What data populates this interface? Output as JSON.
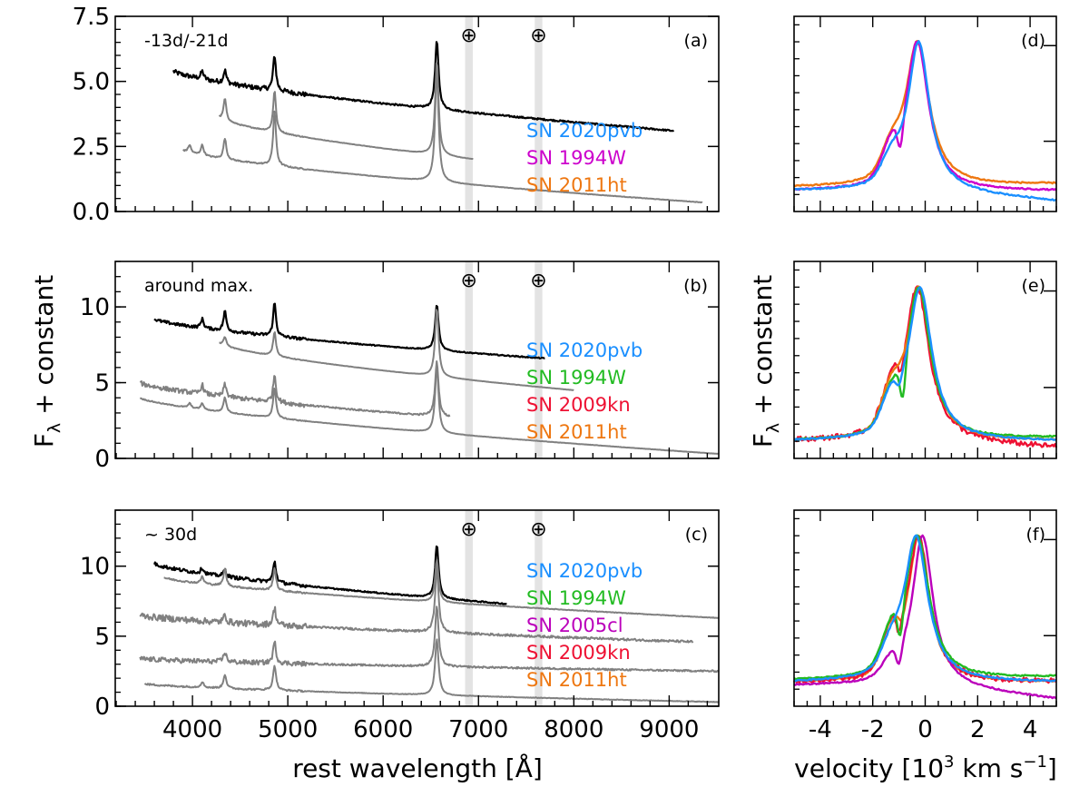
{
  "chart_data": {
    "type": "line",
    "title": "",
    "ylabel": "Fλ + constant",
    "ylabel_main": "F",
    "ylabel_sub": "λ",
    "ylabel_rest": " + constant",
    "left_xlabel": "rest wavelength [Å]",
    "right_xlabel_pre": "velocity [10",
    "right_xlabel_sup1": "3",
    "right_xlabel_mid": " km s",
    "right_xlabel_sup2": "−1",
    "right_xlabel_post": "]",
    "left_xlim": [
      3190,
      9520
    ],
    "right_xlim": [
      -5,
      5
    ],
    "left_xticks": [
      4000,
      5000,
      6000,
      7000,
      8000,
      9000
    ],
    "left_xtick_labels": [
      "4000",
      "5000",
      "6000",
      "7000",
      "8000",
      "9000"
    ],
    "right_xticks": [
      -4,
      -2,
      0,
      2,
      4
    ],
    "right_xtick_labels": [
      "-4",
      "-2",
      "0",
      "2",
      "4"
    ],
    "telluric_bands": [
      [
        6860,
        6940
      ],
      [
        7590,
        7670
      ]
    ],
    "telluric_symbol": "⊕",
    "colors": {
      "SN 2020pvb": "#1a8fff",
      "SN 1994W": "#cc00cc",
      "SN 1994W (b,c)": "#22bb22",
      "SN 2005cl": "#bb00bb",
      "SN 2009kn": "#ee1133",
      "SN 2011ht": "#ee7711",
      "target_spectrum": "#000000",
      "comparison_spectrum": "#808080",
      "telluric_band": "#e3e3e3"
    },
    "panels": [
      {
        "id": "a",
        "tag": "(a)",
        "epoch": "-13d/-21d",
        "ylim": [
          0,
          7.5
        ],
        "yticks": [
          0,
          2.5,
          5.0,
          7.5
        ],
        "ytick_labels": [
          "0.0",
          "2.5",
          "5.0",
          "7.5"
        ],
        "legend": [
          {
            "label": "SN 2020pvb",
            "color": "#1a8fff"
          },
          {
            "label": "SN 1994W",
            "color": "#cc00cc"
          },
          {
            "label": "SN 2011ht",
            "color": "#ee7711"
          }
        ],
        "spectra": [
          {
            "name": "SN 2020pvb",
            "color": "#000000",
            "start": 3800,
            "end": 9050,
            "offset": 5.4,
            "slope_end": 3.1,
            "peaks": [
              [
                4102,
                0.3
              ],
              [
                4340,
                0.5
              ],
              [
                4861,
                1.35
              ],
              [
                6563,
                2.6
              ]
            ],
            "noise": 0.18
          },
          {
            "name": "SN 1994W",
            "color": "#808080",
            "start": 4280,
            "end": 6950,
            "offset": 3.6,
            "slope_end": 2.0,
            "peaks": [
              [
                4340,
                0.85
              ],
              [
                4861,
                1.6
              ],
              [
                6563,
                3.6
              ]
            ],
            "noise": 0.04
          },
          {
            "name": "SN 2011ht",
            "color": "#808080",
            "start": 3900,
            "end": 9350,
            "offset": 2.35,
            "slope_end": 0.35,
            "peaks": [
              [
                3970,
                0.3
              ],
              [
                4102,
                0.4
              ],
              [
                4340,
                0.8
              ],
              [
                4861,
                2.1
              ],
              [
                6563,
                4.3
              ]
            ],
            "noise": 0.05
          }
        ]
      },
      {
        "id": "b",
        "tag": "(b)",
        "epoch": "around max.",
        "ylim": [
          0,
          13
        ],
        "yticks": [
          0,
          5,
          10
        ],
        "ytick_labels": [
          "0",
          "5",
          "10"
        ],
        "legend": [
          {
            "label": "SN 2020pvb",
            "color": "#1a8fff"
          },
          {
            "label": "SN 1994W",
            "color": "#22bb22"
          },
          {
            "label": "SN 2009kn",
            "color": "#ee1133"
          },
          {
            "label": "SN 2011ht",
            "color": "#ee7711"
          }
        ],
        "spectra": [
          {
            "name": "SN 2020pvb",
            "color": "#000000",
            "start": 3600,
            "end": 7700,
            "offset": 9.2,
            "slope_end": 6.6,
            "peaks": [
              [
                4102,
                0.6
              ],
              [
                4340,
                1.3
              ],
              [
                4861,
                2.2
              ],
              [
                6563,
                3.0
              ]
            ],
            "noise": 0.2
          },
          {
            "name": "SN 1994W",
            "color": "#808080",
            "start": 4280,
            "end": 8000,
            "offset": 7.6,
            "slope_end": 4.5,
            "peaks": [
              [
                4340,
                0.6
              ],
              [
                4861,
                1.6
              ],
              [
                6563,
                4.5
              ]
            ],
            "noise": 0.05
          },
          {
            "name": "SN 2009kn",
            "color": "#808080",
            "start": 3450,
            "end": 6700,
            "offset": 5.0,
            "slope_end": 2.7,
            "peaks": [
              [
                4102,
                0.6
              ],
              [
                4340,
                0.8
              ],
              [
                4861,
                1.8
              ],
              [
                6563,
                3.6
              ]
            ],
            "noise": 0.3
          },
          {
            "name": "SN 2011ht",
            "color": "#808080",
            "start": 3450,
            "end": 9520,
            "offset": 4.0,
            "slope_end": 0.3,
            "peaks": [
              [
                3970,
                0.3
              ],
              [
                4102,
                0.4
              ],
              [
                4340,
                1.0
              ],
              [
                4861,
                2.0
              ],
              [
                6563,
                4.4
              ]
            ],
            "noise": 0.06
          }
        ]
      },
      {
        "id": "c",
        "tag": "(c)",
        "epoch": "~ 30d",
        "ylim": [
          0,
          14
        ],
        "yticks": [
          0,
          5,
          10
        ],
        "ytick_labels": [
          "0",
          "5",
          "10"
        ],
        "legend": [
          {
            "label": "SN 2020pvb",
            "color": "#1a8fff"
          },
          {
            "label": "SN 1994W",
            "color": "#22bb22"
          },
          {
            "label": "SN 2005cl",
            "color": "#bb00bb"
          },
          {
            "label": "SN 2009kn",
            "color": "#ee1133"
          },
          {
            "label": "SN 2011ht",
            "color": "#ee7711"
          }
        ],
        "spectra": [
          {
            "name": "SN 2020pvb",
            "color": "#000000",
            "start": 3600,
            "end": 7300,
            "offset": 10.2,
            "slope_end": 7.3,
            "peaks": [
              [
                4102,
                0.4
              ],
              [
                4340,
                0.5
              ],
              [
                4861,
                1.5
              ],
              [
                6563,
                3.8
              ]
            ],
            "noise": 0.25
          },
          {
            "name": "SN 1994W",
            "color": "#808080",
            "start": 3700,
            "end": 9520,
            "offset": 9.2,
            "slope_end": 6.3,
            "peaks": [
              [
                4102,
                0.5
              ],
              [
                4340,
                1.2
              ],
              [
                4861,
                1.6
              ],
              [
                6563,
                3.0
              ]
            ],
            "noise": 0.12
          },
          {
            "name": "SN 2005cl",
            "color": "#808080",
            "start": 3450,
            "end": 9250,
            "offset": 6.5,
            "slope_end": 4.6,
            "peaks": [
              [
                4340,
                0.5
              ],
              [
                4861,
                1.2
              ],
              [
                6563,
                4.6
              ]
            ],
            "noise": 0.45
          },
          {
            "name": "SN 2009kn",
            "color": "#808080",
            "start": 3450,
            "end": 9520,
            "offset": 3.4,
            "slope_end": 2.5,
            "peaks": [
              [
                4340,
                0.7
              ],
              [
                4861,
                1.5
              ],
              [
                6563,
                4.3
              ]
            ],
            "noise": 0.35
          },
          {
            "name": "SN 2011ht",
            "color": "#808080",
            "start": 3500,
            "end": 9520,
            "offset": 1.6,
            "slope_end": 0.3,
            "peaks": [
              [
                4102,
                0.4
              ],
              [
                4340,
                1.0
              ],
              [
                4861,
                1.8
              ],
              [
                6563,
                4.0
              ]
            ],
            "noise": 0.12
          }
        ]
      },
      {
        "id": "d",
        "tag": "(d)",
        "xlim": [
          -5,
          5
        ],
        "ylim": [
          0,
          1.15
        ],
        "profiles": [
          {
            "name": "SN 2011ht",
            "color": "#ee7711",
            "peak_v": -0.3,
            "width": 0.55,
            "base": 0.14,
            "shoulder": 0.14,
            "abs_v": -1.1,
            "abs_depth": 0.0,
            "tail": 0.02
          },
          {
            "name": "SN 1994W",
            "color": "#cc00cc",
            "peak_v": -0.3,
            "width": 0.52,
            "base": 0.12,
            "shoulder": 0.16,
            "abs_v": -0.95,
            "abs_depth": 0.18,
            "tail": 0.0
          },
          {
            "name": "SN 2020pvb",
            "color": "#1a8fff",
            "peak_v": -0.25,
            "width": 0.5,
            "base": 0.12,
            "shoulder": 0.12,
            "abs_v": -1.0,
            "abs_depth": 0.0,
            "tail": -0.06
          }
        ]
      },
      {
        "id": "e",
        "tag": "(e)",
        "xlim": [
          -5,
          5
        ],
        "ylim": [
          0,
          1.15
        ],
        "profiles": [
          {
            "name": "SN 2009kn",
            "color": "#ee1133",
            "peak_v": -0.3,
            "width": 0.55,
            "base": 0.1,
            "shoulder": 0.2,
            "abs_v": -0.9,
            "abs_depth": 0.1,
            "tail": -0.04
          },
          {
            "name": "SN 2011ht",
            "color": "#ee7711",
            "peak_v": -0.25,
            "width": 0.55,
            "base": 0.1,
            "shoulder": 0.2,
            "abs_v": -1.0,
            "abs_depth": 0.0,
            "tail": 0.0
          },
          {
            "name": "SN 1994W",
            "color": "#22bb22",
            "peak_v": -0.25,
            "width": 0.55,
            "base": 0.1,
            "shoulder": 0.16,
            "abs_v": -0.85,
            "abs_depth": 0.22,
            "tail": 0.02
          },
          {
            "name": "SN 2020pvb",
            "color": "#1a8fff",
            "peak_v": -0.2,
            "width": 0.55,
            "base": 0.1,
            "shoulder": 0.16,
            "abs_v": -1.0,
            "abs_depth": 0.07,
            "tail": 0.0
          }
        ]
      },
      {
        "id": "f",
        "tag": "(f)",
        "xlim": [
          -5,
          5
        ],
        "ylim": [
          0,
          1.15
        ],
        "profiles": [
          {
            "name": "SN 2011ht",
            "color": "#ee7711",
            "peak_v": -0.25,
            "width": 0.48,
            "base": 0.14,
            "shoulder": 0.22,
            "abs_v": -0.9,
            "abs_depth": 0.05,
            "tail": 0.0
          },
          {
            "name": "SN 2009kn",
            "color": "#ee1133",
            "peak_v": -0.25,
            "width": 0.5,
            "base": 0.14,
            "shoulder": 0.22,
            "abs_v": -1.0,
            "abs_depth": 0.12,
            "tail": 0.0
          },
          {
            "name": "SN 2005cl",
            "color": "#bb00bb",
            "peak_v": -0.1,
            "width": 0.48,
            "base": 0.12,
            "shoulder": 0.08,
            "abs_v": -1.0,
            "abs_depth": 0.12,
            "tail": -0.08
          },
          {
            "name": "SN 1994W",
            "color": "#22bb22",
            "peak_v": -0.3,
            "width": 0.55,
            "base": 0.15,
            "shoulder": 0.18,
            "abs_v": -0.95,
            "abs_depth": 0.2,
            "tail": 0.02
          },
          {
            "name": "SN 2020pvb",
            "color": "#1a8fff",
            "peak_v": -0.35,
            "width": 0.55,
            "base": 0.14,
            "shoulder": 0.12,
            "abs_v": -1.0,
            "abs_depth": 0.0,
            "tail": 0.0
          }
        ]
      }
    ]
  }
}
